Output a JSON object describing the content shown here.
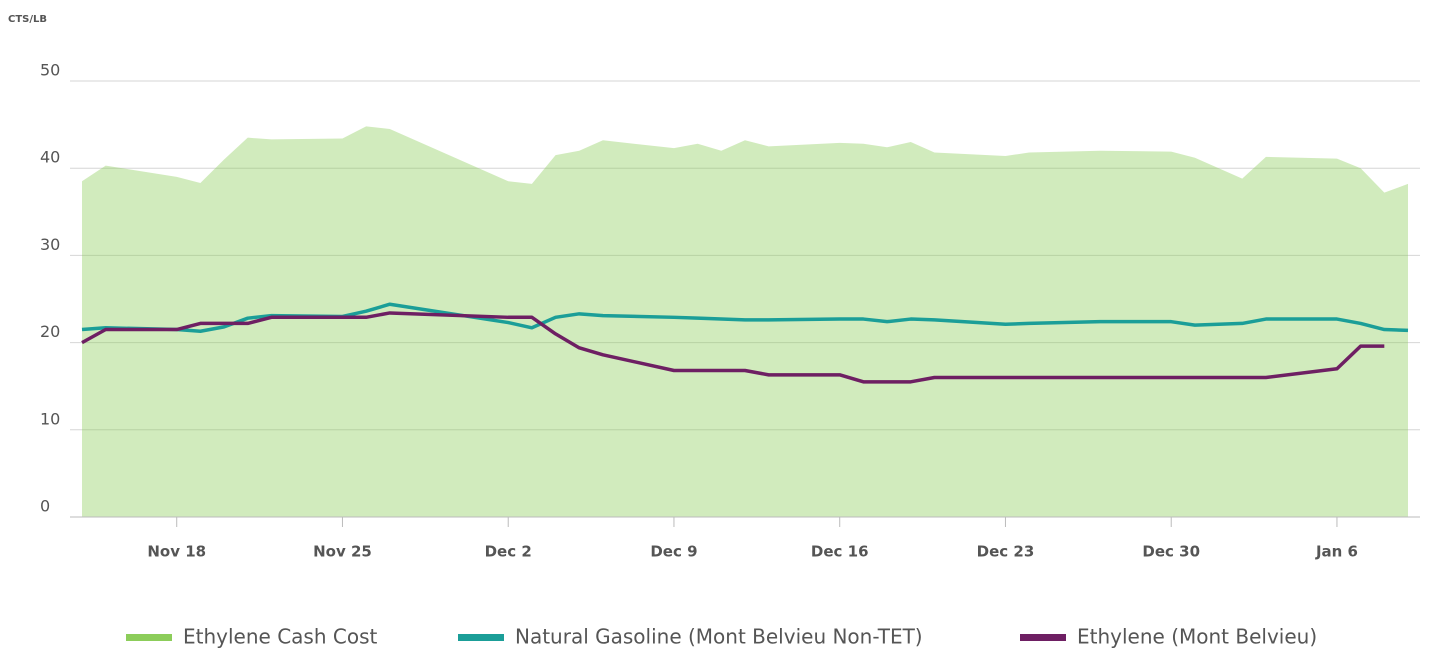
{
  "chart_data": {
    "type": "line",
    "y_label": "CTS/LB",
    "x": [
      "Nov 14",
      "Nov 15",
      "Nov 18",
      "Nov 19",
      "Nov 20",
      "Nov 21",
      "Nov 22",
      "Nov 25",
      "Nov 26",
      "Nov 27",
      "Dec 2",
      "Dec 3",
      "Dec 4",
      "Dec 5",
      "Dec 6",
      "Dec 9",
      "Dec 10",
      "Dec 11",
      "Dec 12",
      "Dec 13",
      "Dec 16",
      "Dec 17",
      "Dec 18",
      "Dec 19",
      "Dec 20",
      "Dec 23",
      "Dec 24",
      "Dec 27",
      "Dec 30",
      "Dec 31",
      "Jan 2",
      "Jan 3",
      "Jan 6",
      "Jan 7",
      "Jan 8",
      "Jan 9"
    ],
    "xticks": [
      "Nov 18",
      "Nov 25",
      "Dec 2",
      "Dec 9",
      "Dec 16",
      "Dec 23",
      "Dec 30",
      "Jan 6"
    ],
    "ylim": [
      0,
      50
    ],
    "yticks": [
      0,
      10,
      20,
      30,
      40,
      50
    ],
    "grid": true,
    "legend": "bottom",
    "series": [
      {
        "name": "Ethylene Cash Cost",
        "type": "area",
        "color": "#8ccd5a",
        "values": [
          38.5,
          40.3,
          39,
          38.3,
          41,
          43.5,
          43.3,
          43.4,
          44.8,
          44.5,
          38.5,
          38.2,
          41.5,
          42,
          43.2,
          42.3,
          42.8,
          42,
          43.2,
          42.5,
          42.9,
          42.8,
          42.4,
          43,
          41.8,
          41.4,
          41.8,
          42,
          41.9,
          41.2,
          38.8,
          41.3,
          41.1,
          40,
          37.2,
          38.2
        ]
      },
      {
        "name": "Natural Gasoline (Mont Belvieu Non-TET)",
        "type": "line",
        "color": "#1b9e98",
        "values": [
          21.5,
          21.7,
          21.5,
          21.3,
          21.8,
          22.8,
          23.1,
          23.0,
          23.6,
          24.4,
          22.3,
          21.7,
          22.9,
          23.3,
          23.1,
          22.9,
          22.8,
          22.7,
          22.6,
          22.6,
          22.7,
          22.7,
          22.4,
          22.7,
          22.6,
          22.1,
          22.2,
          22.4,
          22.4,
          22.0,
          22.2,
          22.7,
          22.7,
          22.2,
          21.5,
          21.4
        ]
      },
      {
        "name": "Ethylene (Mont Belvieu)",
        "type": "line",
        "color": "#6e1f63",
        "values": [
          20,
          21.5,
          21.5,
          22.2,
          22.2,
          22.2,
          22.9,
          22.9,
          22.9,
          23.4,
          22.9,
          22.9,
          21,
          19.4,
          18.6,
          16.8,
          16.8,
          16.8,
          16.8,
          16.3,
          16.3,
          15.5,
          15.5,
          15.5,
          16,
          16,
          16,
          16,
          16,
          16,
          16,
          16,
          17,
          19.6,
          19.6,
          null
        ]
      }
    ]
  }
}
